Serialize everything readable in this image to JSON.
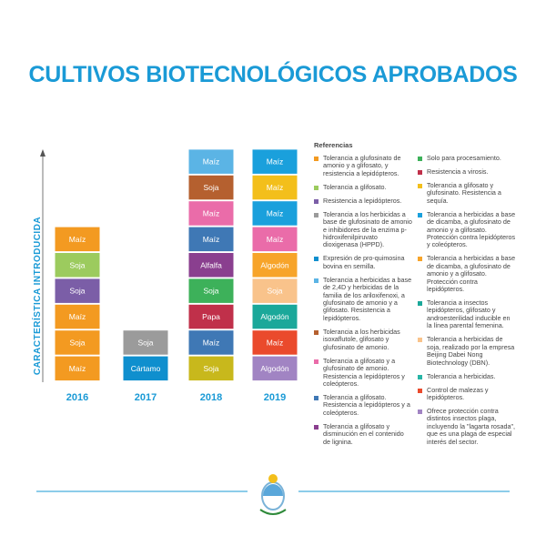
{
  "header": {
    "title": "CULTIVOS BIOTECNOLÓGICOS APROBADOS"
  },
  "axis_label": "CARACTERÍSTICA INTRODUCIDA",
  "columns": [
    {
      "year": "2016",
      "blocks": [
        {
          "label": "Maíz",
          "color": "#f39a21"
        },
        {
          "label": "Soja",
          "color": "#f39a21"
        },
        {
          "label": "Maíz",
          "color": "#f39a21"
        },
        {
          "label": "Soja",
          "color": "#7b5ea7"
        },
        {
          "label": "Soja",
          "color": "#9ccb5e"
        },
        {
          "label": "Maíz",
          "color": "#f39a21"
        }
      ]
    },
    {
      "year": "2017",
      "blocks": [
        {
          "label": "Cártamo",
          "color": "#0f8fce"
        },
        {
          "label": "Soja",
          "color": "#9b9b9b"
        }
      ]
    },
    {
      "year": "2018",
      "blocks": [
        {
          "label": "Soja",
          "color": "#c8b81c"
        },
        {
          "label": "Maíz",
          "color": "#3f78b5"
        },
        {
          "label": "Papa",
          "color": "#c0304a"
        },
        {
          "label": "Soja",
          "color": "#3db15a"
        },
        {
          "label": "Alfalfa",
          "color": "#8a3f8f"
        },
        {
          "label": "Maíz",
          "color": "#3f78b5"
        },
        {
          "label": "Maíz",
          "color": "#ea6ca9"
        },
        {
          "label": "Soja",
          "color": "#b5602f"
        },
        {
          "label": "Maíz",
          "color": "#5bb4e5"
        }
      ]
    },
    {
      "year": "2019",
      "blocks": [
        {
          "label": "Algodón",
          "color": "#a184c3"
        },
        {
          "label": "Maíz",
          "color": "#ea4a2c"
        },
        {
          "label": "Algodón",
          "color": "#1ba89a"
        },
        {
          "label": "Soja",
          "color": "#f9c38b"
        },
        {
          "label": "Algodón",
          "color": "#f7a42a"
        },
        {
          "label": "Maíz",
          "color": "#ea6ca9"
        },
        {
          "label": "Maíz",
          "color": "#1aa0dc"
        },
        {
          "label": "Maíz",
          "color": "#f3bf1b"
        },
        {
          "label": "Maíz",
          "color": "#1aa0dc"
        }
      ]
    }
  ],
  "legend": {
    "title": "Referencias",
    "columns": [
      [
        {
          "color": "#f39a21",
          "text": "Tolerancia a glufosinato de amonio y a glifosato, y resistencia a lepidópteros."
        },
        {
          "color": "#9ccb5e",
          "text": "Tolerancia a glifosato."
        },
        {
          "color": "#7b5ea7",
          "text": "Resistencia a lepidópteros."
        },
        {
          "color": "#9b9b9b",
          "text": "Tolerancia a los herbicidas a base de glufosinato de amonio e inhibidores de la enzima p-hidroxifenilpiruvato dioxigenasa (HPPD)."
        },
        {
          "color": "#0f8fce",
          "text": "Expresión de pro-quimosina bovina en semilla."
        },
        {
          "color": "#5bb4e5",
          "text": "Tolerancia a herbicidas a base de 2,4D y herbicidas de la familia de los ariloxifenoxi, a glufosinato de amonio y a glifosato. Resistencia a lepidópteros."
        },
        {
          "color": "#b5602f",
          "text": "Tolerancia a los herbicidas isoxaflutole, glifosato y glufosinato de amonio."
        },
        {
          "color": "#ea6ca9",
          "text": "Tolerancia a glifosato y a glufosinato de amonio. Resistencia a lepidópteros y coleópteros."
        },
        {
          "color": "#3f78b5",
          "text": "Tolerancia a glifosato. Resistencia a lepidópteros y a coleópteros."
        },
        {
          "color": "#8a3f8f",
          "text": "Tolerancia a glifosato y disminución en el contenido de lignina."
        }
      ],
      [
        {
          "color": "#3db15a",
          "text": "Solo para procesamiento."
        },
        {
          "color": "#c0304a",
          "text": "Resistencia a virosis."
        },
        {
          "color": "#f3bf1b",
          "text": "Tolerancia a glifosato y glufosinato. Resistencia a sequía."
        },
        {
          "color": "#1aa0dc",
          "text": "Tolerancia a herbicidas a base de dicamba, a glufosinato de amonio y a glifosato. Protección contra lepidópteros y coleópteros."
        },
        {
          "color": "#f7a42a",
          "text": "Tolerancia a herbicidas a base de dicamba, a glufosinato de amonio y a glifosato. Protección contra lepidópteros."
        },
        {
          "color": "#1ba89a",
          "text": "Tolerancia a insectos lepidópteros, glifosato y androesterilidad inducible en la línea parental femenina."
        },
        {
          "color": "#f9c38b",
          "text": "Tolerancia a herbicidas de soja, realizado por la empresa Beijing Dabei Nong Biotechnology (DBN)."
        },
        {
          "color": "#27b5a6",
          "text": "Tolerancia a herbicidas."
        },
        {
          "color": "#ea4a2c",
          "text": "Control de malezas y lepidópteros."
        },
        {
          "color": "#a184c3",
          "text": "Ofrece protección contra distintos insectos plaga, incluyendo la \"lagarta rosada\", que es una plaga de especial interés del sector."
        }
      ]
    ]
  }
}
